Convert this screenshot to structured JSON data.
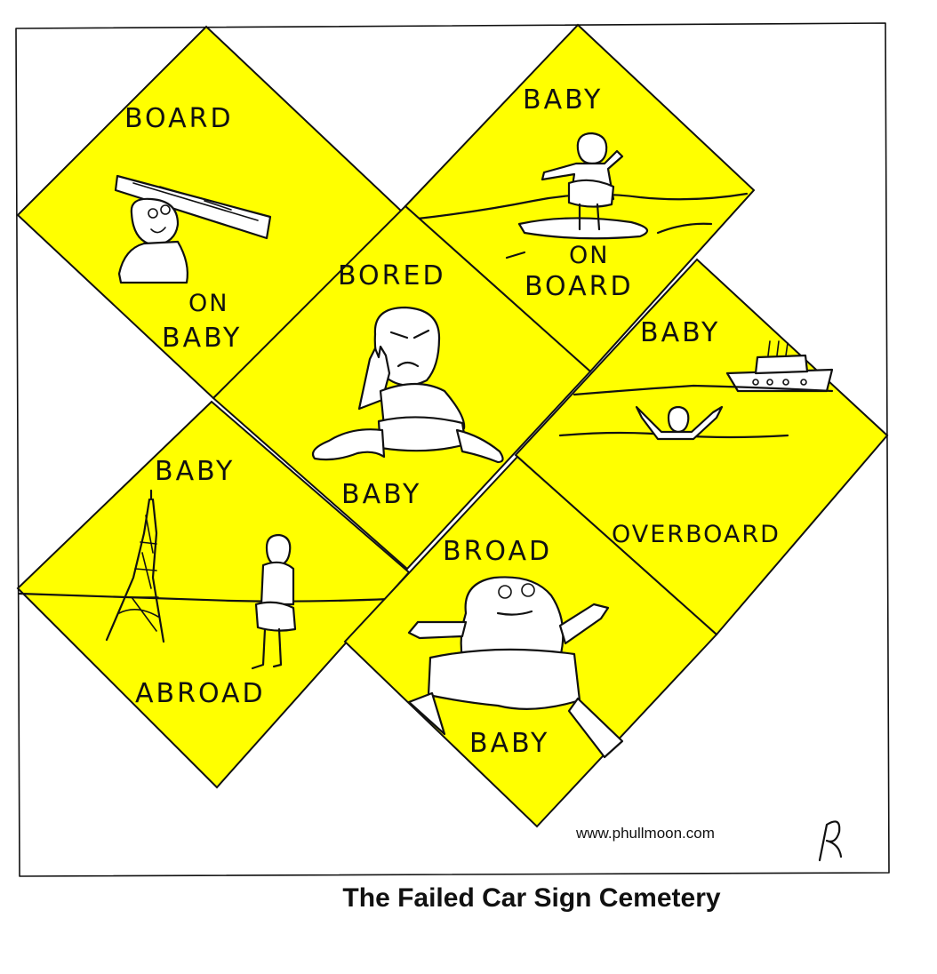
{
  "colors": {
    "sign_fill": "#ffff00",
    "ink": "#111111",
    "background": "#ffffff"
  },
  "signs": {
    "board_on_baby": {
      "top": "BOARD",
      "line1": "ON",
      "line2": "BABY"
    },
    "baby_on_board": {
      "top": "BABY",
      "line1": "ON",
      "line2": "BOARD"
    },
    "bored_baby": {
      "top": "BORED",
      "bottom": "BABY"
    },
    "baby_overboard": {
      "top": "BABY",
      "bottom": "OVERBOARD"
    },
    "baby_abroad": {
      "top": "BABY",
      "bottom": "ABROAD"
    },
    "broad_baby": {
      "top": "BROAD",
      "bottom": "BABY"
    }
  },
  "icons": {
    "signature": "signature-icon",
    "ship": "ship-icon",
    "eiffel_tower": "eiffel-tower-icon"
  },
  "website": "www.phullmoon.com",
  "caption": "The Failed Car Sign Cemetery"
}
